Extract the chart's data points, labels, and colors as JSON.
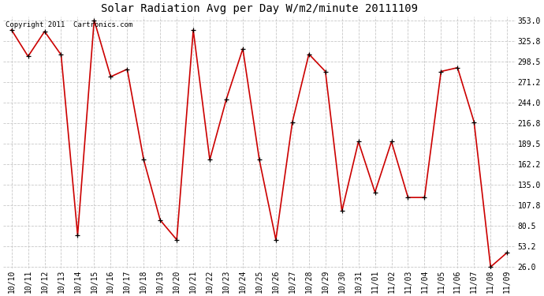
{
  "title": "Solar Radiation Avg per Day W/m2/minute 20111109",
  "copyright_text": "Copyright 2011  Cartronics.com",
  "data_points": {
    "10/10": 340,
    "10/11": 305,
    "10/12": 338,
    "10/13": 307,
    "10/14": 68,
    "10/15": 353,
    "10/16": 278,
    "10/17": 288,
    "10/18": 168,
    "10/19": 88,
    "10/20": 62,
    "10/21": 340,
    "10/22": 168,
    "10/23": 248,
    "10/24": 315,
    "10/25": 168,
    "10/26": 62,
    "10/27": 218,
    "10/28": 308,
    "10/29": 285,
    "10/30": 100,
    "10/31": 192,
    "11/01": 125,
    "11/02": 192,
    "11/03": 118,
    "11/04": 118,
    "11/05": 285,
    "11/06": 290,
    "11/07": 218,
    "11/08": 26,
    "11/09": 45
  },
  "y_ticks": [
    26.0,
    53.2,
    80.5,
    107.8,
    135.0,
    162.2,
    189.5,
    216.8,
    244.0,
    271.2,
    298.5,
    325.8,
    353.0
  ],
  "y_min": 26.0,
  "y_max": 353.0,
  "line_color": "#cc0000",
  "marker_color": "#000000",
  "background_color": "#ffffff",
  "grid_color": "#c8c8c8",
  "title_fontsize": 10,
  "tick_fontsize": 7,
  "copyright_fontsize": 6.5
}
